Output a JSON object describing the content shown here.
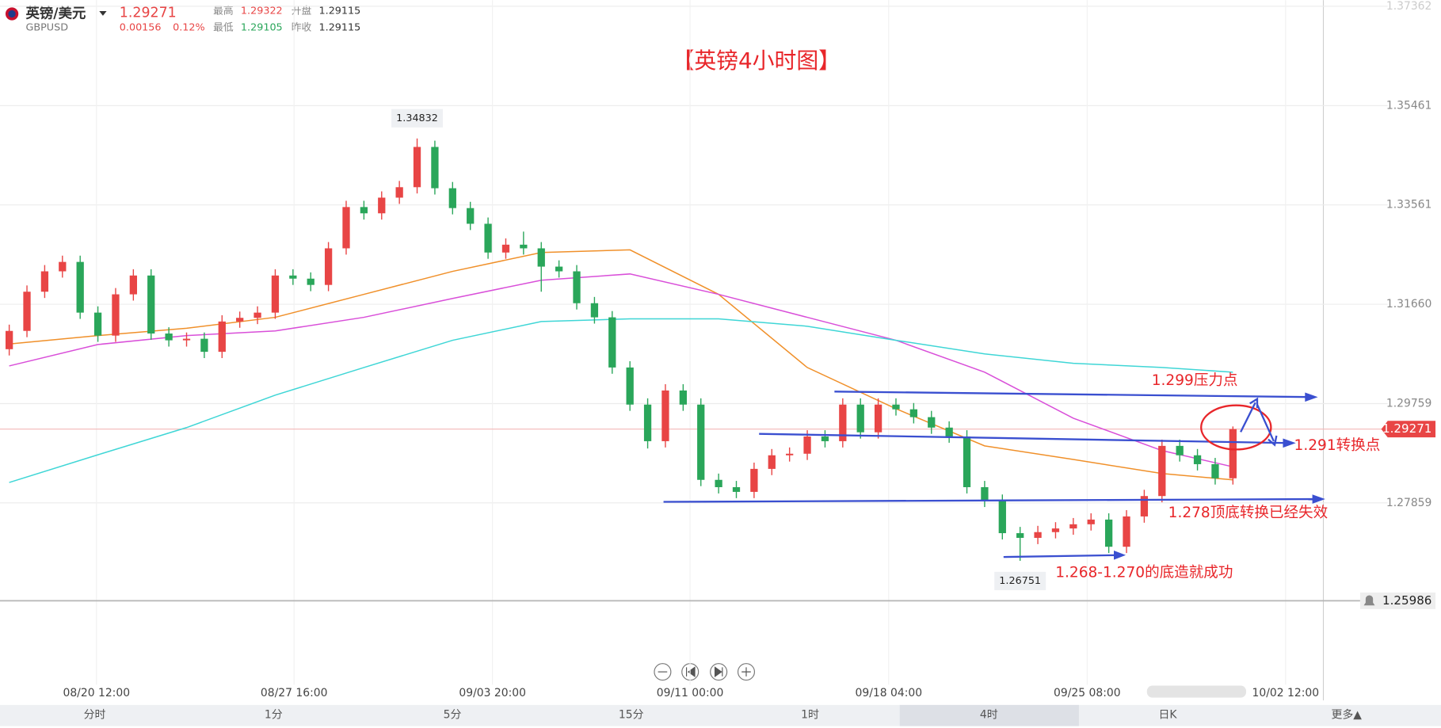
{
  "header": {
    "name": "英镑/美元",
    "symbol": "GBPUSD",
    "price": "1.29271",
    "change": "0.00156",
    "change_pct": "0.12%",
    "high_label": "最高",
    "high": "1.29322",
    "open_label": "开盘",
    "open": "1.29115",
    "low_label": "最低",
    "low": "1.29105",
    "prev_close_label": "昨收",
    "prev_close": "1.29115"
  },
  "chart_data": {
    "type": "candlestick",
    "title": "【英镑4小时图】",
    "up_color": "#e84545",
    "down_color": "#2aa65a",
    "open": [
      1.308,
      1.3115,
      1.319,
      1.3229,
      1.3247,
      1.315,
      1.3106,
      1.3185,
      1.3221,
      1.311,
      1.3097,
      1.31,
      1.3075,
      1.3133,
      1.314,
      1.315,
      1.3221,
      1.3215,
      1.3203,
      1.3273,
      1.3352,
      1.334,
      1.337,
      1.339,
      1.3467,
      1.3388,
      1.335,
      1.332,
      1.3265,
      1.328,
      1.3273,
      1.3238,
      1.3229,
      1.3168,
      1.3141,
      1.3045,
      1.2974,
      1.2904,
      1.3001,
      1.2974,
      1.283,
      1.2816,
      1.2807,
      1.2851,
      1.2877,
      1.288,
      1.2913,
      1.2904,
      1.2974,
      1.2921,
      1.2974,
      1.2965,
      1.295,
      1.293,
      1.2913,
      1.2816,
      1.279,
      1.2728,
      1.2719,
      1.273,
      1.2737,
      1.2745,
      1.2754,
      1.2702,
      1.276,
      1.2799,
      1.2895,
      1.2877,
      1.286,
      1.2833
    ],
    "high": [
      1.3127,
      1.3202,
      1.3241,
      1.3259,
      1.3259,
      1.3162,
      1.3197,
      1.3233,
      1.3233,
      1.3122,
      1.3112,
      1.3112,
      1.3145,
      1.3152,
      1.3162,
      1.3233,
      1.3233,
      1.3227,
      1.3285,
      1.3364,
      1.3364,
      1.3382,
      1.3402,
      1.34832,
      1.3479,
      1.34,
      1.3362,
      1.3332,
      1.3292,
      1.3305,
      1.3285,
      1.325,
      1.3241,
      1.318,
      1.3153,
      1.3057,
      1.2986,
      1.3013,
      1.3013,
      1.2986,
      1.2842,
      1.2828,
      1.2863,
      1.2889,
      1.2892,
      1.2925,
      1.2925,
      1.2986,
      1.2986,
      1.2986,
      1.2986,
      1.2977,
      1.2962,
      1.2942,
      1.2925,
      1.2828,
      1.2802,
      1.274,
      1.2742,
      1.2749,
      1.2757,
      1.2766,
      1.2766,
      1.2772,
      1.2811,
      1.2907,
      1.2907,
      1.2889,
      1.2872,
      1.29322
    ],
    "low": [
      1.3068,
      1.3103,
      1.3178,
      1.3217,
      1.3138,
      1.3094,
      1.3094,
      1.3173,
      1.3098,
      1.3085,
      1.3085,
      1.3063,
      1.3063,
      1.3121,
      1.3128,
      1.3138,
      1.3203,
      1.3191,
      1.3191,
      1.3261,
      1.3328,
      1.3328,
      1.3358,
      1.3378,
      1.3376,
      1.3338,
      1.3308,
      1.3253,
      1.3253,
      1.3261,
      1.319,
      1.3217,
      1.3156,
      1.3129,
      1.3033,
      1.2962,
      1.289,
      1.2892,
      1.2962,
      1.2818,
      1.2804,
      1.2795,
      1.2795,
      1.2839,
      1.2865,
      1.2868,
      1.2892,
      1.2892,
      1.2909,
      1.2909,
      1.2953,
      1.2938,
      1.2918,
      1.2901,
      1.2804,
      1.2778,
      1.2716,
      1.26751,
      1.2707,
      1.2718,
      1.2725,
      1.2733,
      1.269,
      1.269,
      1.2748,
      1.2787,
      1.2865,
      1.2848,
      1.2821,
      1.2821
    ],
    "close": [
      1.3115,
      1.319,
      1.3229,
      1.3247,
      1.315,
      1.3106,
      1.3185,
      1.3221,
      1.311,
      1.3097,
      1.31,
      1.3075,
      1.3133,
      1.314,
      1.315,
      1.3221,
      1.3215,
      1.3203,
      1.3273,
      1.3352,
      1.334,
      1.337,
      1.339,
      1.3467,
      1.3388,
      1.335,
      1.332,
      1.3265,
      1.328,
      1.3273,
      1.3238,
      1.3229,
      1.3168,
      1.3141,
      1.3045,
      1.2974,
      1.2904,
      1.3001,
      1.2974,
      1.283,
      1.2816,
      1.2807,
      1.2851,
      1.2877,
      1.288,
      1.2913,
      1.2904,
      1.2974,
      1.2921,
      1.2974,
      1.2965,
      1.295,
      1.293,
      1.2913,
      1.2816,
      1.279,
      1.2728,
      1.2719,
      1.273,
      1.2737,
      1.2745,
      1.2754,
      1.2702,
      1.276,
      1.2799,
      1.2895,
      1.2877,
      1.286,
      1.2833,
      1.29271
    ],
    "moving_averages": [
      {
        "color": "#f0902a",
        "x": [
          0,
          5,
          10,
          15,
          20,
          25,
          30,
          35,
          40,
          45,
          50,
          55,
          60,
          65,
          69
        ],
        "values": [
          1.309,
          1.3106,
          1.312,
          1.3141,
          1.3185,
          1.3229,
          1.3265,
          1.327,
          1.3185,
          1.3045,
          1.2966,
          1.2895,
          1.2869,
          1.2842,
          1.283
        ]
      },
      {
        "color": "#d94fd9",
        "x": [
          0,
          5,
          10,
          15,
          20,
          25,
          30,
          35,
          40,
          45,
          50,
          55,
          60,
          65,
          69
        ],
        "values": [
          1.3048,
          1.3089,
          1.3106,
          1.3115,
          1.3141,
          1.3177,
          1.3212,
          1.3224,
          1.3185,
          1.3141,
          1.3097,
          1.3036,
          1.2948,
          1.2886,
          1.2855
        ]
      },
      {
        "color": "#3fd6d6",
        "x": [
          0,
          5,
          10,
          15,
          20,
          25,
          30,
          35,
          40,
          45,
          50,
          55,
          60,
          65,
          69
        ],
        "values": [
          1.2825,
          1.2878,
          1.293,
          1.2992,
          1.3045,
          1.3097,
          1.3133,
          1.3138,
          1.3138,
          1.3124,
          1.3097,
          1.3071,
          1.3053,
          1.3045,
          1.3036
        ]
      }
    ],
    "xlim": [
      -0.52,
      74.1
    ],
    "xticks": [
      {
        "value": 4.92,
        "label": "08/20 12:00"
      },
      {
        "value": 16.06,
        "label": "08/27 16:00"
      },
      {
        "value": 27.25,
        "label": "09/03 20:00"
      },
      {
        "value": 38.39,
        "label": "09/11 00:00"
      },
      {
        "value": 49.59,
        "label": "09/18 04:00"
      },
      {
        "value": 60.78,
        "label": "09/25 08:00"
      },
      {
        "value": 71.97,
        "label": "10/02 12:00"
      }
    ],
    "ylim": [
      1.2438,
      1.3748
    ],
    "yticks": [
      1.27859,
      1.29759,
      {
        "value": 1.3166,
        "label": "1.31660"
      },
      1.33561,
      1.35461,
      1.37362
    ],
    "grid": true,
    "alert_line": 1.25986,
    "annotations": [
      "1.299压力点",
      "1.291转换点",
      "1.278顶底转换已经失效",
      "1.268-1.270的底造就成功"
    ]
  },
  "tabs": [
    "分时",
    "1分",
    "5分",
    "15分",
    "1时",
    "4时",
    "日K",
    "更多▲"
  ],
  "active_tab": 5
}
